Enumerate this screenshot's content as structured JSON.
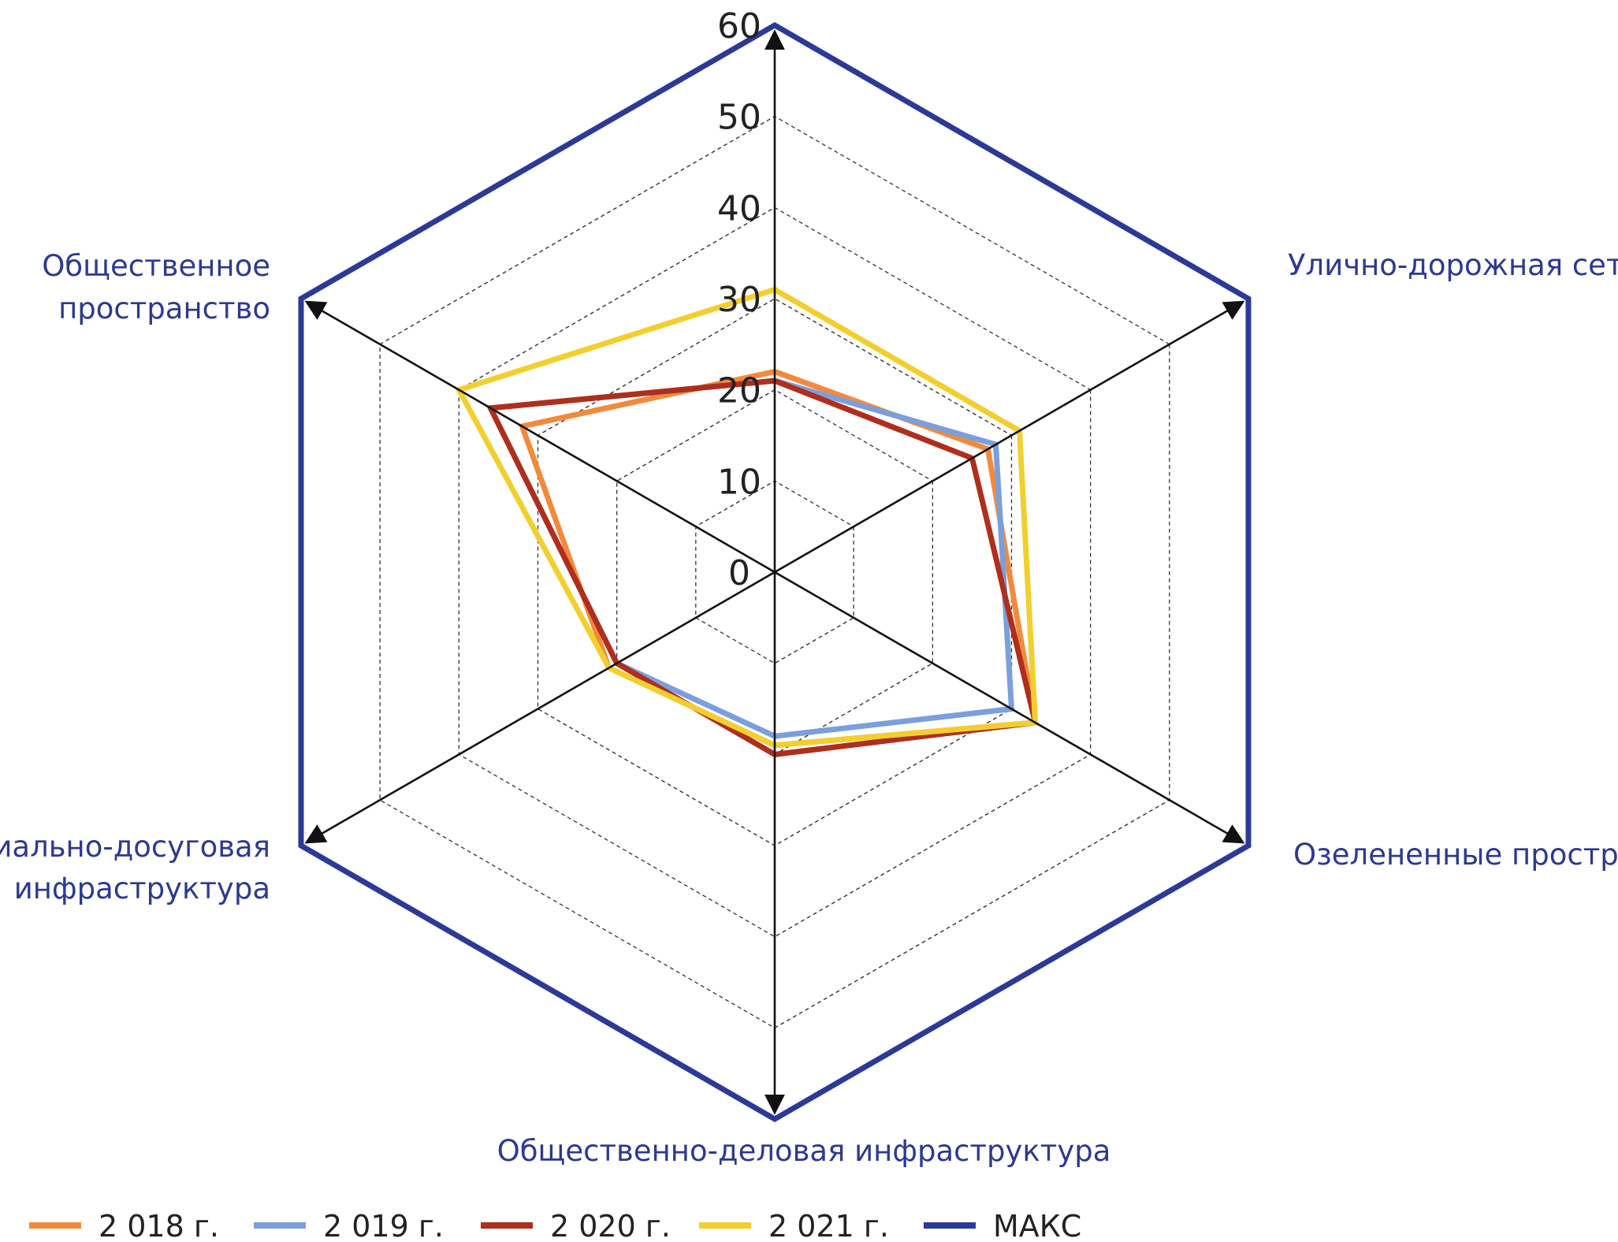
{
  "chart_data": {
    "type": "radar",
    "title": "",
    "axes": [
      "Улично-дорожная сеть",
      "Озелененные пространства",
      "Общественно-деловая инфраструктура",
      "Социально-досуговая инфраструктура",
      "Общественное пространство",
      ""
    ],
    "axis_labels": {
      "top_right": "Улично-дорожная сеть",
      "bottom_right": "Озелененные пространства",
      "bottom": "Общественно-деловая инфраструктура",
      "bottom_left_line1": "Социально-досуговая",
      "bottom_left_line2": "инфраструктура",
      "top_left_line1": "Общественное",
      "top_left_line2": "пространство"
    },
    "radial_range": [
      0,
      60
    ],
    "ticks": [
      0,
      10,
      20,
      30,
      40,
      50,
      60
    ],
    "tick_labels": [
      "0",
      "10",
      "20",
      "30",
      "40",
      "50",
      "60"
    ],
    "series": [
      {
        "name": "2 018 г.",
        "color": "#f28a3c",
        "values": [
          27,
          33,
          19,
          21,
          32,
          22
        ]
      },
      {
        "name": "2 019 г.",
        "color": "#7b9fdc",
        "values": [
          28,
          30,
          18,
          20,
          36,
          21
        ]
      },
      {
        "name": "2 020 г.",
        "color": "#b02e1c",
        "values": [
          25,
          33,
          20,
          20,
          36,
          21
        ]
      },
      {
        "name": "2 021 г.",
        "color": "#f2cf2e",
        "values": [
          31,
          33,
          19,
          21,
          40,
          31
        ]
      },
      {
        "name": "МАКС",
        "color": "#2b3a97",
        "values": [
          60,
          60,
          60,
          60,
          60,
          60
        ]
      }
    ],
    "grid": true,
    "legend_position": "bottom"
  }
}
